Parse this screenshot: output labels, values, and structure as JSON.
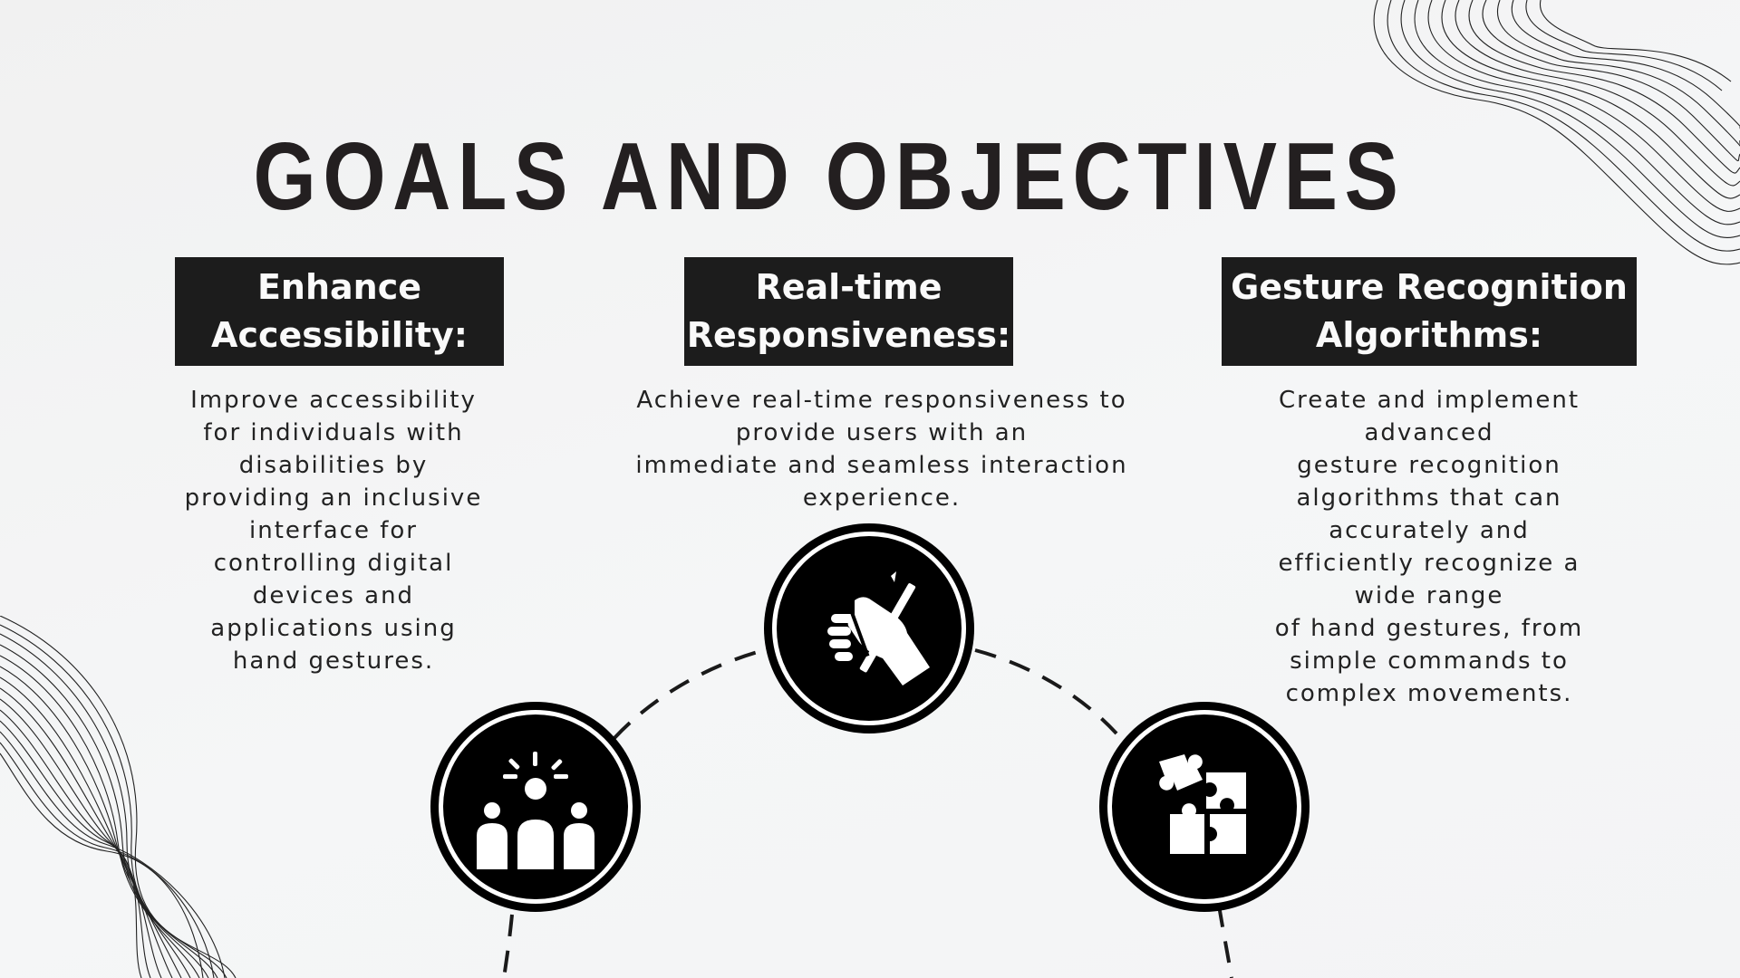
{
  "title": "GOALS AND OBJECTIVES",
  "goals": [
    {
      "heading": [
        "Enhance",
        "Accessibility:"
      ],
      "description": [
        "Improve accessibility",
        "for individuals with",
        "disabilities by",
        "providing an inclusive",
        "interface for",
        "controlling digital",
        "devices and",
        "applications using",
        "hand gestures."
      ],
      "icon": "people-group-icon"
    },
    {
      "heading": [
        "Real-time",
        "Responsiveness:"
      ],
      "description": [
        "Achieve real-time responsiveness to",
        "provide users with an",
        "immediate and seamless interaction",
        "experience."
      ],
      "icon": "hand-holding-pen-icon"
    },
    {
      "heading": [
        "Gesture Recognition",
        "Algorithms:"
      ],
      "description": [
        "Create and implement",
        "advanced",
        "gesture recognition",
        "algorithms that can",
        "accurately and",
        "efficiently recognize a",
        "wide range",
        "of hand gestures, from",
        "simple commands to",
        "complex movements."
      ],
      "icon": "puzzle-pieces-icon"
    }
  ],
  "colors": {
    "dark": "#1c1c1c",
    "text": "#222222",
    "background": "#f3f4f5"
  }
}
